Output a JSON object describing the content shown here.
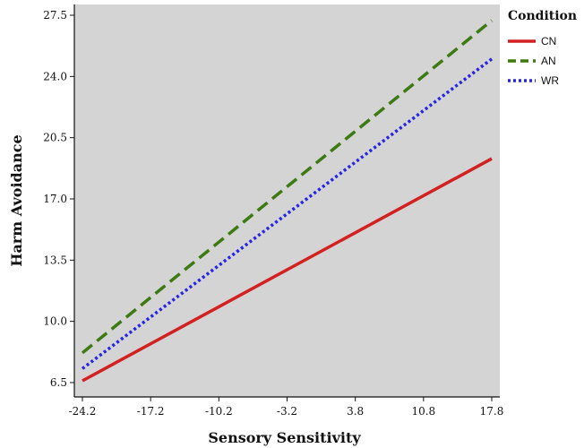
{
  "chart_data": {
    "type": "line",
    "xlabel": "Sensory Sensitivity",
    "ylabel": "Harm Avoidance",
    "xlim": [
      -24.2,
      17.8
    ],
    "ylim": [
      6.5,
      27.5
    ],
    "x_ticks": [
      "-24.2",
      "-17.2",
      "-10.2",
      "-3.2",
      "3.8",
      "10.8",
      "17.8"
    ],
    "y_ticks": [
      "6.5",
      "10.0",
      "13.5",
      "17.0",
      "20.5",
      "24.0",
      "27.5"
    ],
    "grid": false,
    "background_color": "#d4d4d4",
    "legend": {
      "title": "Condition",
      "placement": "outside-top-right"
    },
    "series": [
      {
        "name": "CN",
        "color": "#d32020",
        "style": "solid",
        "x": [
          -24.2,
          17.8
        ],
        "y": [
          6.6,
          19.3
        ]
      },
      {
        "name": "AN",
        "color": "#3d7a12",
        "style": "dashed",
        "x": [
          -24.2,
          17.8
        ],
        "y": [
          8.2,
          27.2
        ]
      },
      {
        "name": "WR",
        "color": "#2525e6",
        "style": "dotted",
        "x": [
          -24.2,
          17.8
        ],
        "y": [
          7.3,
          25.0
        ]
      }
    ]
  }
}
